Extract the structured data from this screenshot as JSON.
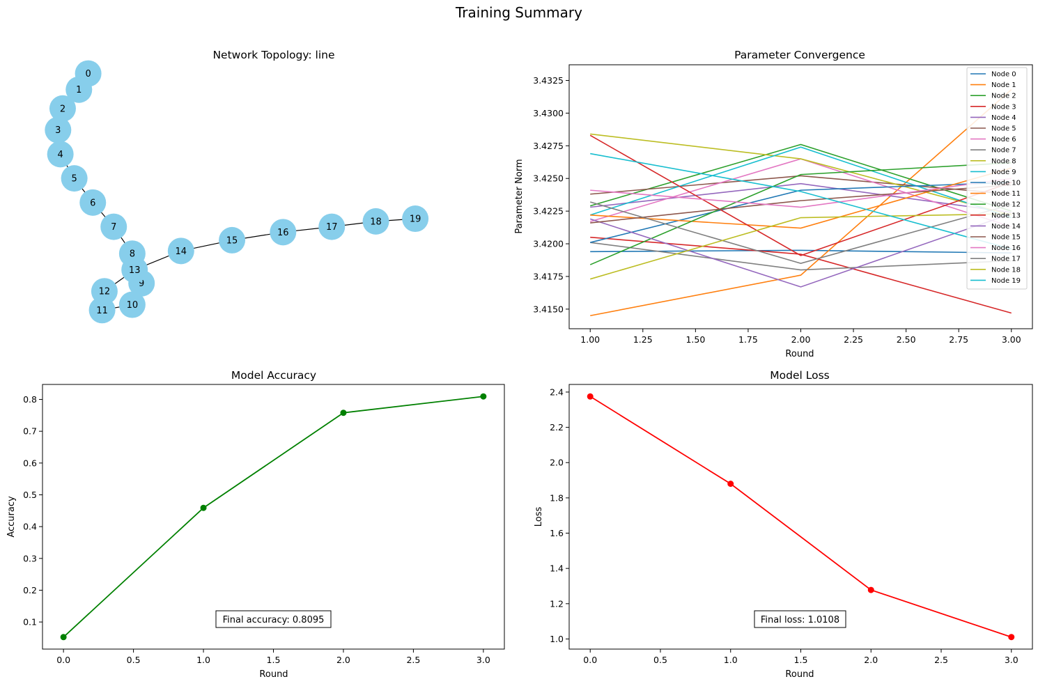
{
  "figure_title": "Training Summary",
  "colors": {
    "node_fill": "#87ceeb",
    "edge": "#000000",
    "accuracy_line": "#008000",
    "loss_line": "#ff0000",
    "palette": [
      "#1f77b4",
      "#ff7f0e",
      "#2ca02c",
      "#d62728",
      "#9467bd",
      "#8c564b",
      "#e377c2",
      "#7f7f7f",
      "#bcbd22",
      "#17becf"
    ]
  },
  "chart_data": [
    {
      "type": "network",
      "title": "Network Topology: line",
      "nodes": [
        {
          "id": "0",
          "x": 0.1,
          "y": 0.97
        },
        {
          "id": "1",
          "x": 0.08,
          "y": 0.91
        },
        {
          "id": "2",
          "x": 0.045,
          "y": 0.84
        },
        {
          "id": "3",
          "x": 0.035,
          "y": 0.76
        },
        {
          "id": "4",
          "x": 0.04,
          "y": 0.67
        },
        {
          "id": "5",
          "x": 0.07,
          "y": 0.58
        },
        {
          "id": "6",
          "x": 0.11,
          "y": 0.49
        },
        {
          "id": "7",
          "x": 0.155,
          "y": 0.4
        },
        {
          "id": "8",
          "x": 0.195,
          "y": 0.3
        },
        {
          "id": "9",
          "x": 0.215,
          "y": 0.19
        },
        {
          "id": "10",
          "x": 0.195,
          "y": 0.11
        },
        {
          "id": "11",
          "x": 0.13,
          "y": 0.09
        },
        {
          "id": "12",
          "x": 0.135,
          "y": 0.16
        },
        {
          "id": "13",
          "x": 0.2,
          "y": 0.24
        },
        {
          "id": "14",
          "x": 0.3,
          "y": 0.31
        },
        {
          "id": "15",
          "x": 0.41,
          "y": 0.35
        },
        {
          "id": "16",
          "x": 0.52,
          "y": 0.38
        },
        {
          "id": "17",
          "x": 0.625,
          "y": 0.4
        },
        {
          "id": "18",
          "x": 0.72,
          "y": 0.42
        },
        {
          "id": "19",
          "x": 0.805,
          "y": 0.43
        }
      ],
      "edges": [
        [
          "0",
          "1"
        ],
        [
          "1",
          "2"
        ],
        [
          "2",
          "3"
        ],
        [
          "3",
          "4"
        ],
        [
          "4",
          "5"
        ],
        [
          "5",
          "6"
        ],
        [
          "6",
          "7"
        ],
        [
          "7",
          "8"
        ],
        [
          "8",
          "9"
        ],
        [
          "9",
          "10"
        ],
        [
          "10",
          "11"
        ],
        [
          "11",
          "12"
        ],
        [
          "12",
          "13"
        ],
        [
          "13",
          "14"
        ],
        [
          "14",
          "15"
        ],
        [
          "15",
          "16"
        ],
        [
          "16",
          "17"
        ],
        [
          "17",
          "18"
        ],
        [
          "18",
          "19"
        ]
      ]
    },
    {
      "type": "line",
      "title": "Parameter Convergence",
      "xlabel": "Round",
      "ylabel": "Parameter Norm",
      "x": [
        1,
        2,
        3
      ],
      "xlim": [
        0.9,
        3.1
      ],
      "ylim": [
        3.4135,
        3.4337
      ],
      "xticks": [
        1.0,
        1.25,
        1.5,
        1.75,
        2.0,
        2.25,
        2.5,
        2.75,
        3.0
      ],
      "yticks": [
        3.415,
        3.4175,
        3.42,
        3.4225,
        3.425,
        3.4275,
        3.43,
        3.4325
      ],
      "tick_decimals_x": 2,
      "tick_decimals_y": 4,
      "legend": "top-right",
      "series": [
        {
          "name": "Node 0",
          "values": [
            3.4194,
            3.4195,
            3.4193
          ]
        },
        {
          "name": "Node 1",
          "values": [
            3.4145,
            3.4176,
            3.4318
          ]
        },
        {
          "name": "Node 2",
          "values": [
            3.4229,
            3.4276,
            3.4225
          ]
        },
        {
          "name": "Node 3",
          "values": [
            3.4205,
            3.4192,
            3.4147
          ]
        },
        {
          "name": "Node 4",
          "values": [
            3.4228,
            3.4246,
            3.4224
          ]
        },
        {
          "name": "Node 5",
          "values": [
            3.4238,
            3.4252,
            3.4238
          ]
        },
        {
          "name": "Node 6",
          "values": [
            3.4217,
            3.4265,
            3.4213
          ]
        },
        {
          "name": "Node 7",
          "values": [
            3.4201,
            3.418,
            3.4187
          ]
        },
        {
          "name": "Node 8",
          "values": [
            3.4284,
            3.4265,
            3.4222
          ]
        },
        {
          "name": "Node 9",
          "values": [
            3.4222,
            3.4274,
            3.422
          ]
        },
        {
          "name": "Node 10",
          "values": [
            3.4201,
            3.4241,
            3.4247
          ]
        },
        {
          "name": "Node 11",
          "values": [
            3.4222,
            3.4212,
            3.4258
          ]
        },
        {
          "name": "Node 12",
          "values": [
            3.4184,
            3.4253,
            3.4262
          ]
        },
        {
          "name": "Node 13",
          "values": [
            3.4283,
            3.4191,
            3.4247
          ]
        },
        {
          "name": "Node 14",
          "values": [
            3.4219,
            3.4167,
            3.4223
          ]
        },
        {
          "name": "Node 15",
          "values": [
            3.4216,
            3.4233,
            3.4245
          ]
        },
        {
          "name": "Node 16",
          "values": [
            3.4241,
            3.4228,
            3.425
          ]
        },
        {
          "name": "Node 17",
          "values": [
            3.4232,
            3.4185,
            3.423
          ]
        },
        {
          "name": "Node 18",
          "values": [
            3.4173,
            3.422,
            3.4223
          ]
        },
        {
          "name": "Node 19",
          "values": [
            3.4269,
            3.424,
            3.4196
          ]
        }
      ]
    },
    {
      "type": "line",
      "title": "Model Accuracy",
      "xlabel": "Round",
      "ylabel": "Accuracy",
      "x": [
        0,
        1,
        2,
        3
      ],
      "values": [
        0.0525,
        0.459,
        0.758,
        0.8095
      ],
      "xlim": [
        -0.15,
        3.15
      ],
      "ylim": [
        0.0148,
        0.8472
      ],
      "xticks": [
        0.0,
        0.5,
        1.0,
        1.5,
        2.0,
        2.5,
        3.0
      ],
      "yticks": [
        0.1,
        0.2,
        0.3,
        0.4,
        0.5,
        0.6,
        0.7,
        0.8
      ],
      "tick_decimals_x": 1,
      "tick_decimals_y": 1,
      "annotation": "Final accuracy: 0.8095",
      "color_key": "accuracy_line"
    },
    {
      "type": "line",
      "title": "Model Loss",
      "xlabel": "Round",
      "ylabel": "Loss",
      "x": [
        0,
        1,
        2,
        3
      ],
      "values": [
        2.375,
        1.88,
        1.278,
        1.0108
      ],
      "xlim": [
        -0.15,
        3.15
      ],
      "ylim": [
        0.9426,
        2.4432
      ],
      "xticks": [
        0.0,
        0.5,
        1.0,
        1.5,
        2.0,
        2.5,
        3.0
      ],
      "yticks": [
        1.0,
        1.2,
        1.4,
        1.6,
        1.8,
        2.0,
        2.2,
        2.4
      ],
      "tick_decimals_x": 1,
      "tick_decimals_y": 1,
      "annotation": "Final loss: 1.0108",
      "color_key": "loss_line"
    }
  ]
}
